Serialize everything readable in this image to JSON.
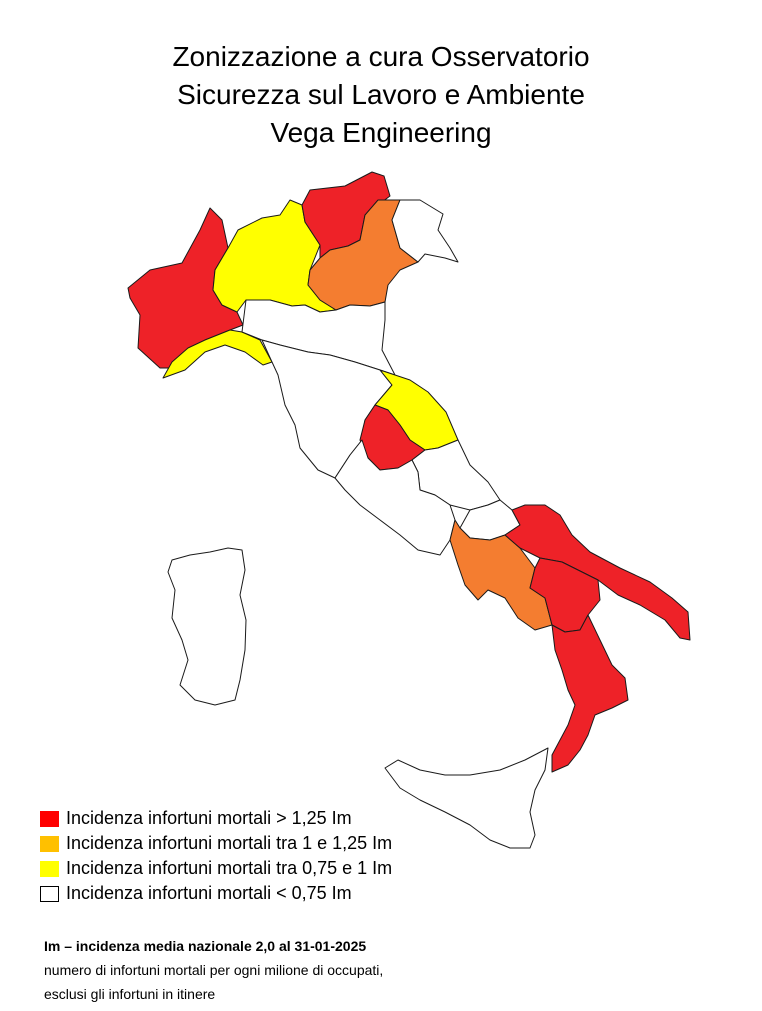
{
  "title": {
    "line1": "Zonizzazione a cura Osservatorio",
    "line2": "Sicurezza sul Lavoro e Ambiente",
    "line3": "Vega Engineering"
  },
  "colors": {
    "red": "#ee2228",
    "orange": "#f47d30",
    "yellow": "#ffff00",
    "white": "#ffffff",
    "legend_orange": "#ffc000"
  },
  "legend": [
    {
      "label": "Incidenza infortuni mortali > 1,25 Im",
      "color": "#ff0000"
    },
    {
      "label": "Incidenza infortuni mortali tra 1 e 1,25 Im",
      "color": "#ffc000"
    },
    {
      "label": "Incidenza infortuni mortali tra 0,75 e 1 Im",
      "color": "#ffff00"
    },
    {
      "label": "Incidenza infortuni mortali < 0,75 Im",
      "color": "#ffffff"
    }
  ],
  "note": {
    "heading": "Im – incidenza media nazionale 2,0 al 31-01-2025",
    "line1": "numero di infortuni mortali per ogni milione di occupati,",
    "line2": "esclusi gli infortuni in itinere"
  },
  "regions": [
    {
      "name": "Valle d'Aosta",
      "level": "white"
    },
    {
      "name": "Piemonte",
      "level": "red"
    },
    {
      "name": "Lombardia",
      "level": "yellow"
    },
    {
      "name": "Trentino-Alto Adige",
      "level": "red"
    },
    {
      "name": "Veneto",
      "level": "orange"
    },
    {
      "name": "Friuli-Venezia Giulia",
      "level": "white"
    },
    {
      "name": "Liguria",
      "level": "yellow"
    },
    {
      "name": "Emilia-Romagna",
      "level": "white"
    },
    {
      "name": "Toscana",
      "level": "white"
    },
    {
      "name": "Marche",
      "level": "yellow"
    },
    {
      "name": "Umbria",
      "level": "red"
    },
    {
      "name": "Lazio",
      "level": "white"
    },
    {
      "name": "Abruzzo",
      "level": "white"
    },
    {
      "name": "Molise",
      "level": "white"
    },
    {
      "name": "Campania",
      "level": "orange"
    },
    {
      "name": "Puglia",
      "level": "red"
    },
    {
      "name": "Basilicata",
      "level": "red"
    },
    {
      "name": "Calabria",
      "level": "red"
    },
    {
      "name": "Sicilia",
      "level": "white"
    },
    {
      "name": "Sardegna",
      "level": "white"
    }
  ]
}
